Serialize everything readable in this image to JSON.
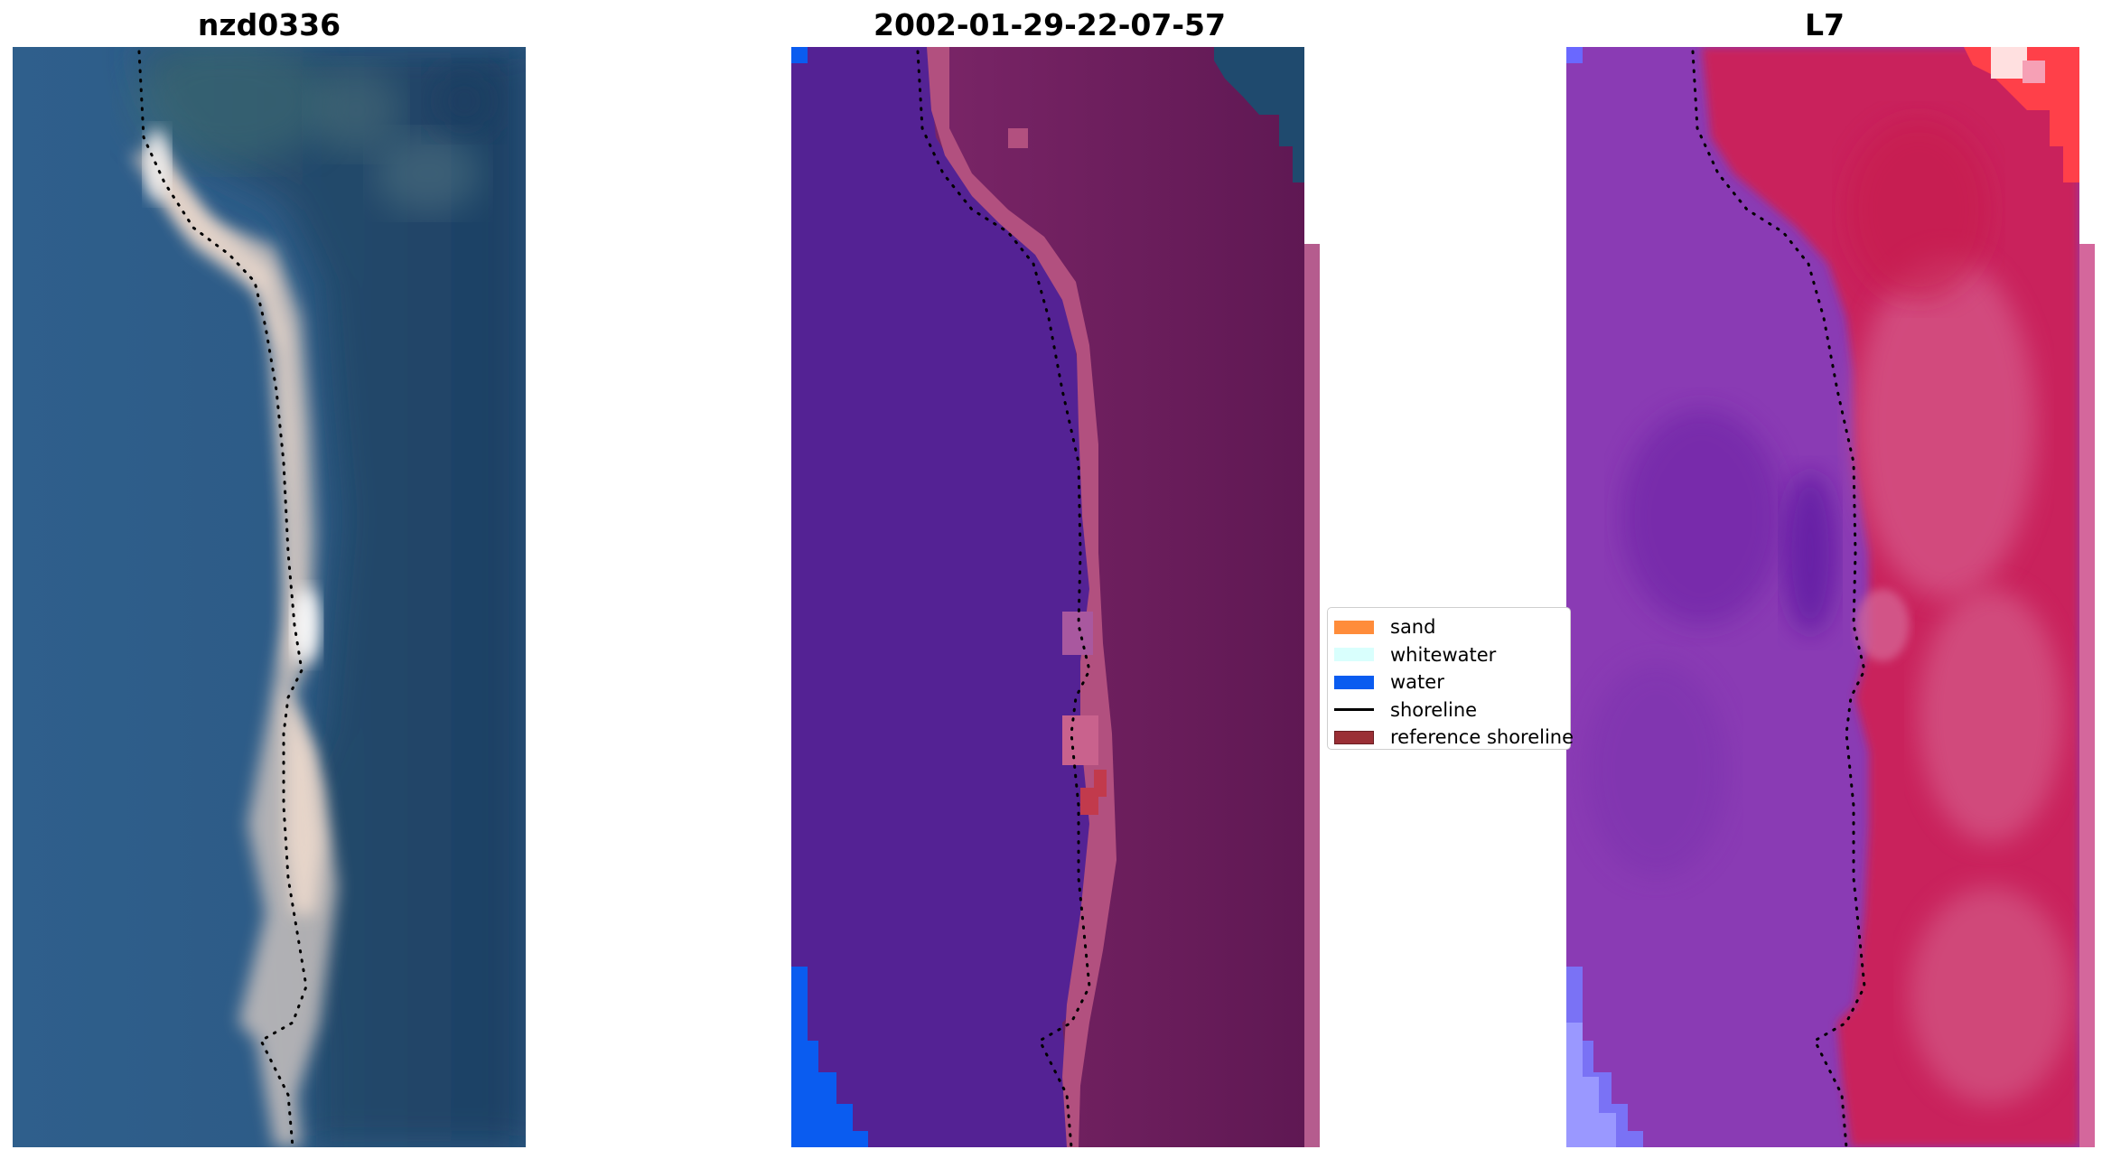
{
  "titles": {
    "site": "nzd0336",
    "date": "2002-01-29-22-07-57",
    "satellite": "L7"
  },
  "legend": {
    "items": [
      {
        "label": "sand",
        "color": "#ff8c3a",
        "kind": "patch"
      },
      {
        "label": "whitewater",
        "color": "#d9fffd",
        "kind": "patch"
      },
      {
        "label": "water",
        "color": "#0a5cf0",
        "kind": "patch"
      },
      {
        "label": "shoreline",
        "color": "#000000",
        "kind": "line"
      },
      {
        "label": "reference shoreline",
        "color": "#9a2f35",
        "kind": "patch"
      }
    ]
  },
  "colors": {
    "rgb_sea": "#2d5b86",
    "rgb_land": "#1f4a6e",
    "rgb_sand": "#e8d3c6",
    "class_water": "#542294",
    "class_land": "#6b1b5a",
    "class_beach": "#b2507f",
    "class_blue": "#0a5cf0",
    "ndwi_water": "#8a3bb4",
    "ndwi_land": "#c8205a",
    "ndwi_pink": "#d6608a"
  }
}
